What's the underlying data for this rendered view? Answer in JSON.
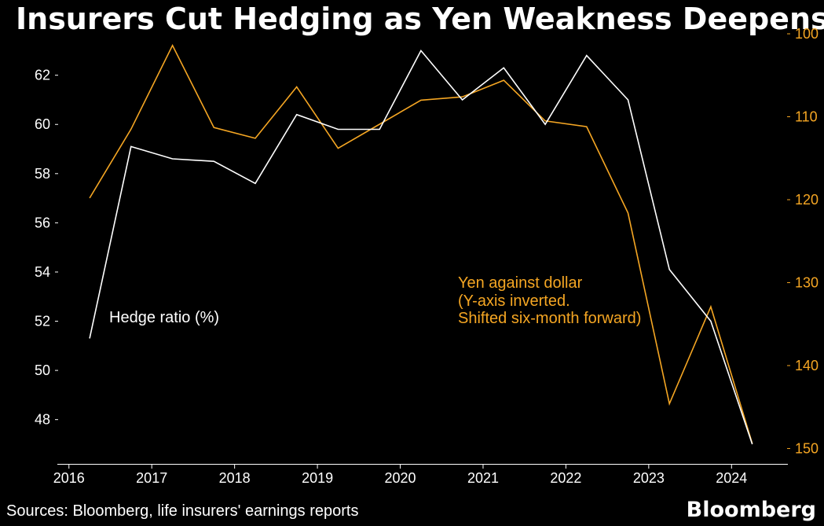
{
  "title": "Insurers Cut Hedging as Yen Weakness Deepens",
  "source": "Sources: Bloomberg, life insurers' earnings reports",
  "brand": "Bloomberg",
  "colors": {
    "background": "#000000",
    "hedge": "#ffffff",
    "yen": "#f5a623",
    "axis": "#ffffff"
  },
  "chart_data": {
    "type": "line",
    "title": "Insurers Cut Hedging as Yen Weakness Deepens",
    "xlabel": "",
    "x_ticks": [
      "2016",
      "2017",
      "2018",
      "2019",
      "2020",
      "2021",
      "2022",
      "2023",
      "2024"
    ],
    "xlim": [
      2015.86,
      2024.68
    ],
    "y_left": {
      "label": "Hedge ratio (%)",
      "ticks": [
        48,
        50,
        52,
        54,
        56,
        58,
        60,
        62
      ],
      "ylim": [
        46.2,
        63.3
      ]
    },
    "y_right": {
      "label": "Yen against dollar",
      "inverted": true,
      "ticks": [
        100,
        110,
        120,
        130,
        140,
        150
      ],
      "ylim": [
        100,
        151
      ]
    },
    "series": [
      {
        "name": "Hedge ratio (%)",
        "axis": "left",
        "x": [
          2016.25,
          2016.75,
          2017.25,
          2017.75,
          2018.25,
          2018.75,
          2019.25,
          2019.75,
          2020.25,
          2020.75,
          2021.25,
          2021.75,
          2022.25,
          2022.75,
          2023.25,
          2023.75,
          2024.25
        ],
        "values": [
          51.3,
          59.1,
          58.6,
          58.5,
          57.6,
          60.4,
          59.8,
          59.8,
          63.0,
          61.0,
          62.3,
          60.0,
          62.8,
          61.0,
          54.1,
          52.0,
          47.0
        ]
      },
      {
        "name": "Yen against dollar (Y-axis inverted. Shifted six-month forward)",
        "axis": "right",
        "x": [
          2016.25,
          2016.75,
          2017.25,
          2017.75,
          2018.25,
          2018.75,
          2019.25,
          2019.75,
          2020.25,
          2020.75,
          2021.25,
          2021.75,
          2022.25,
          2022.75,
          2023.25,
          2023.75,
          2024.25
        ],
        "values": [
          119.8,
          111.5,
          101.4,
          111.3,
          112.6,
          106.4,
          113.8,
          110.9,
          108.0,
          107.6,
          105.6,
          110.5,
          111.2,
          121.6,
          144.6,
          132.9,
          149.4
        ]
      }
    ],
    "annotations": {
      "hedge": "Hedge ratio (%)",
      "yen_lines": [
        "Yen against dollar",
        "(Y-axis inverted.",
        "Shifted six-month forward)"
      ]
    }
  }
}
